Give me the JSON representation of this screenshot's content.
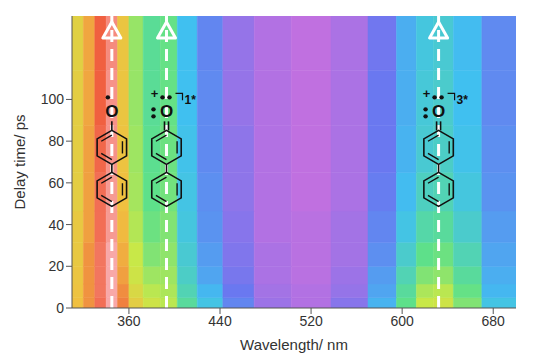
{
  "chart_data": {
    "type": "heatmap",
    "x_label": "Wavelength/ nm",
    "y_label": "Delay time/ ps",
    "xlim": [
      310,
      700
    ],
    "xticks": [
      360,
      440,
      520,
      600,
      680
    ],
    "ylim": [
      0,
      140
    ],
    "yticks": [
      0,
      20,
      40,
      60,
      80,
      100
    ],
    "x": [
      315,
      325,
      335,
      345,
      355,
      365,
      380,
      395,
      410,
      430,
      455,
      485,
      520,
      555,
      585,
      605,
      620,
      635,
      655,
      685
    ],
    "y": [
      2,
      8,
      15,
      25,
      38,
      55,
      75,
      100,
      128
    ],
    "cells": [
      [
        0.75,
        0.82,
        0.92,
        1.0,
        0.85,
        0.7,
        0.62,
        0.58,
        0.42,
        0.3,
        0.15,
        0.05,
        0.02,
        0.08,
        0.25,
        0.45,
        0.6,
        0.62,
        0.5,
        0.3
      ],
      [
        0.74,
        0.82,
        0.93,
        1.0,
        0.83,
        0.66,
        0.58,
        0.56,
        0.38,
        0.26,
        0.12,
        0.04,
        0.02,
        0.06,
        0.22,
        0.42,
        0.56,
        0.58,
        0.46,
        0.26
      ],
      [
        0.73,
        0.82,
        0.93,
        1.0,
        0.8,
        0.62,
        0.54,
        0.54,
        0.35,
        0.22,
        0.1,
        0.03,
        0.01,
        0.05,
        0.2,
        0.38,
        0.5,
        0.52,
        0.42,
        0.24
      ],
      [
        0.72,
        0.82,
        0.93,
        1.0,
        0.78,
        0.6,
        0.5,
        0.52,
        0.33,
        0.2,
        0.09,
        0.03,
        0.01,
        0.04,
        0.17,
        0.34,
        0.45,
        0.47,
        0.38,
        0.22
      ],
      [
        0.72,
        0.8,
        0.92,
        0.98,
        0.76,
        0.57,
        0.47,
        0.5,
        0.31,
        0.18,
        0.08,
        0.02,
        0.01,
        0.04,
        0.15,
        0.3,
        0.4,
        0.42,
        0.34,
        0.2
      ],
      [
        0.7,
        0.8,
        0.92,
        0.98,
        0.75,
        0.55,
        0.45,
        0.48,
        0.3,
        0.17,
        0.07,
        0.02,
        0.0,
        0.03,
        0.13,
        0.27,
        0.36,
        0.38,
        0.31,
        0.18
      ],
      [
        0.7,
        0.8,
        0.91,
        0.97,
        0.74,
        0.54,
        0.44,
        0.47,
        0.29,
        0.16,
        0.07,
        0.02,
        0.0,
        0.03,
        0.12,
        0.25,
        0.33,
        0.35,
        0.29,
        0.17
      ],
      [
        0.7,
        0.79,
        0.9,
        0.97,
        0.73,
        0.53,
        0.43,
        0.46,
        0.28,
        0.16,
        0.06,
        0.02,
        0.0,
        0.03,
        0.12,
        0.24,
        0.32,
        0.34,
        0.28,
        0.16
      ],
      [
        0.69,
        0.79,
        0.9,
        0.96,
        0.73,
        0.53,
        0.43,
        0.46,
        0.28,
        0.15,
        0.06,
        0.02,
        0.0,
        0.03,
        0.11,
        0.24,
        0.31,
        0.33,
        0.27,
        0.16
      ]
    ],
    "annotations": [
      {
        "x": 345,
        "text": "O"
      },
      {
        "x": 393,
        "text": "O",
        "charge": "+",
        "state": "1*"
      },
      {
        "x": 632,
        "text": "O",
        "charge": "+",
        "state": "3*"
      }
    ]
  }
}
